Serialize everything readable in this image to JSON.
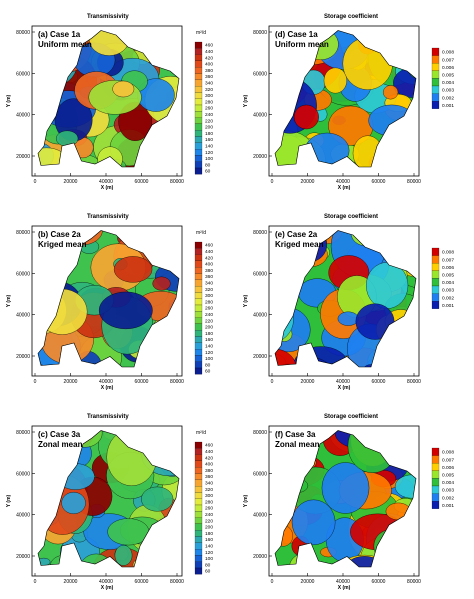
{
  "panels": [
    {
      "id": "a",
      "title": "Transmissivity",
      "label1": "(a) Case 1a",
      "label2": "Uniform mean",
      "kind": "T",
      "seed": 1
    },
    {
      "id": "d",
      "title": "Storage coefficient",
      "label1": "(d) Case 1a",
      "label2": "Uniform mean",
      "kind": "S",
      "seed": 4
    },
    {
      "id": "b",
      "title": "Transmissivity",
      "label1": "(b) Case 2a",
      "label2": "Kriged mean",
      "kind": "T",
      "seed": 2
    },
    {
      "id": "e",
      "title": "Storage coefficient",
      "label1": "(e) Case 2a",
      "label2": "Kriged mean",
      "kind": "S",
      "seed": 5
    },
    {
      "id": "c",
      "title": "Transmissivity",
      "label1": "(c) Case 3a",
      "label2": "Zonal mean",
      "kind": "T",
      "seed": 3
    },
    {
      "id": "f",
      "title": "Storage coefficient",
      "label1": "(f) Case 3a",
      "label2": "Zonal mean",
      "kind": "S",
      "seed": 6
    }
  ],
  "axes": {
    "xlabel": "X (m)",
    "ylabel": "Y (m)",
    "xticks": [
      "0",
      "20000",
      "40000",
      "60000",
      "80000"
    ],
    "yticks": [
      "20000",
      "40000",
      "60000",
      "80000"
    ]
  },
  "legend_T": {
    "unit": "m²/d",
    "levels": [
      "460",
      "440",
      "420",
      "400",
      "380",
      "360",
      "340",
      "320",
      "300",
      "280",
      "260",
      "240",
      "220",
      "200",
      "180",
      "160",
      "140",
      "120",
      "100",
      "80",
      "60"
    ]
  },
  "legend_S": {
    "levels": [
      "0.008",
      "0.007",
      "0.006",
      "0.005",
      "0.004",
      "0.003",
      "0.002",
      "0.001"
    ]
  },
  "colors": {
    "T": [
      "#8b0000",
      "#b22222",
      "#cc3311",
      "#e04a1a",
      "#ee6622",
      "#f58a2a",
      "#f7a531",
      "#f5c23a",
      "#f0dc3e",
      "#e3ec3c",
      "#c4ea3a",
      "#9fe03a",
      "#6ed33e",
      "#3fc24e",
      "#2fb57a",
      "#2ca8b0",
      "#2aa0d8",
      "#1e86e8",
      "#1562d6",
      "#1040b8",
      "#0a1e90"
    ],
    "S": [
      "#d40000",
      "#ff7a00",
      "#ffd000",
      "#9ae62c",
      "#2fbf3a",
      "#2ec9d6",
      "#1e7ff0",
      "#0a1fb0"
    ]
  }
}
